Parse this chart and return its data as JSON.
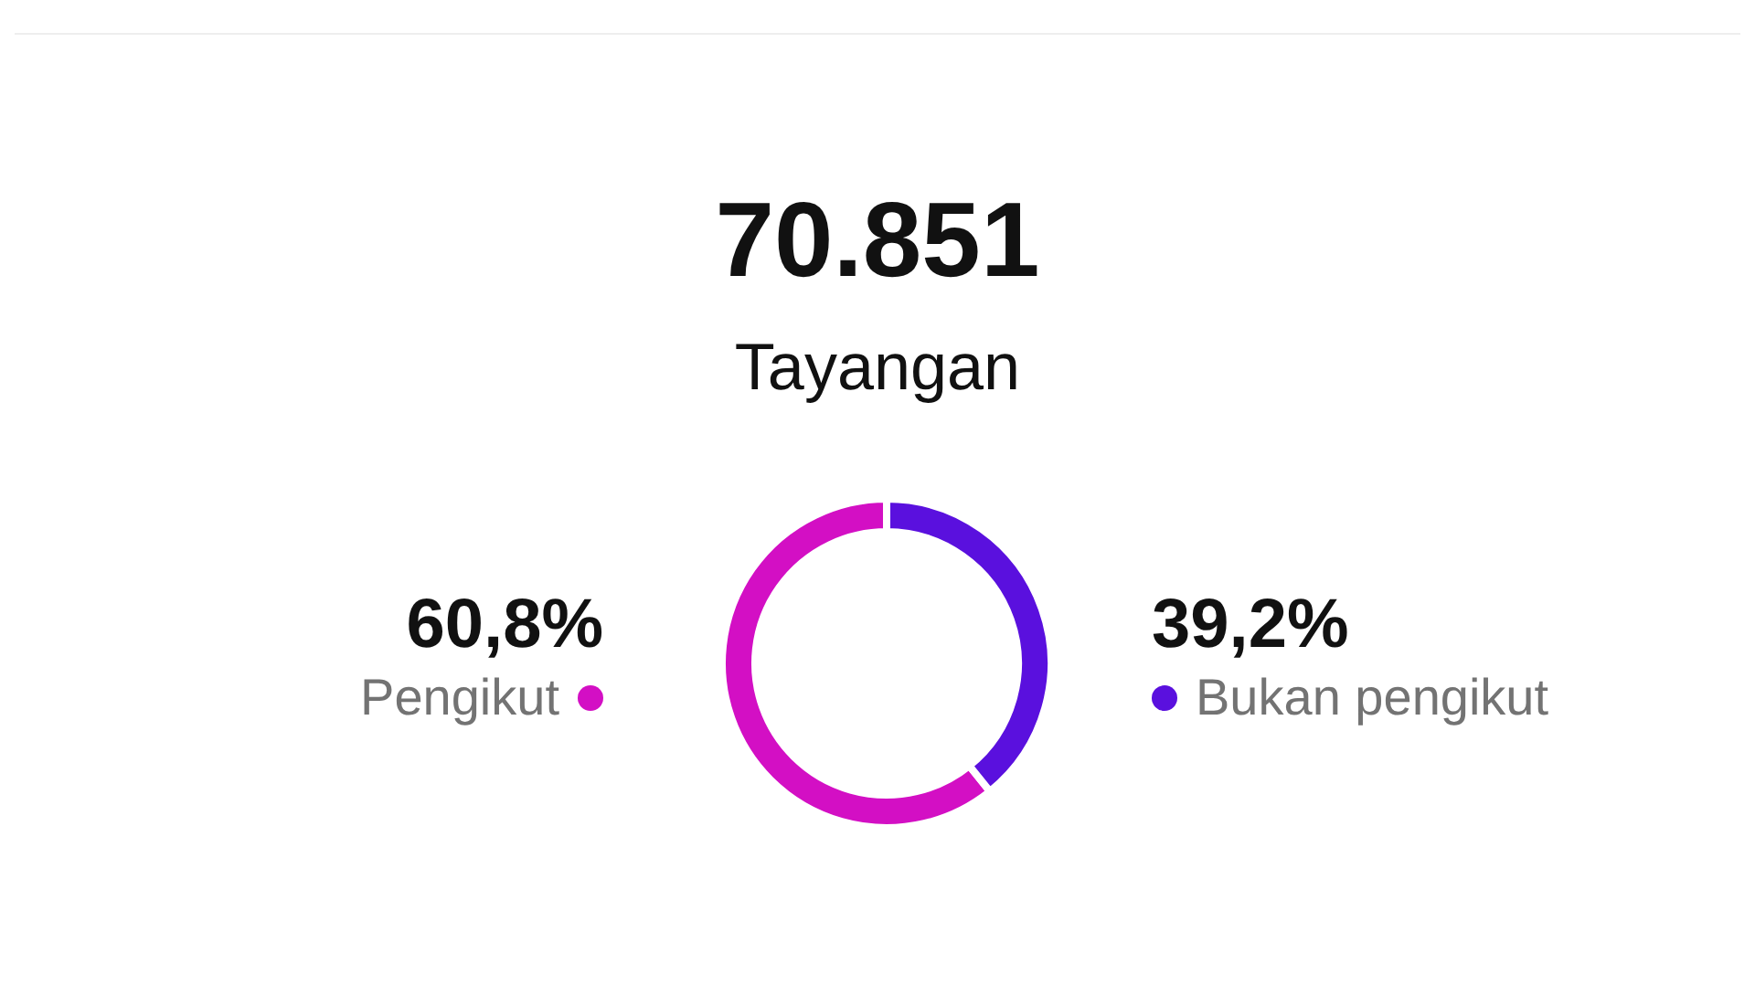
{
  "chart_data": {
    "type": "donut",
    "title": "70.851",
    "subtitle": "Tayangan",
    "categories": [
      "Pengikut",
      "Bukan pengikut"
    ],
    "values": [
      60.8,
      39.2
    ],
    "colors": [
      "#d30fc4",
      "#5a10de"
    ],
    "value_labels": [
      "60,8%",
      "39,2%"
    ]
  }
}
